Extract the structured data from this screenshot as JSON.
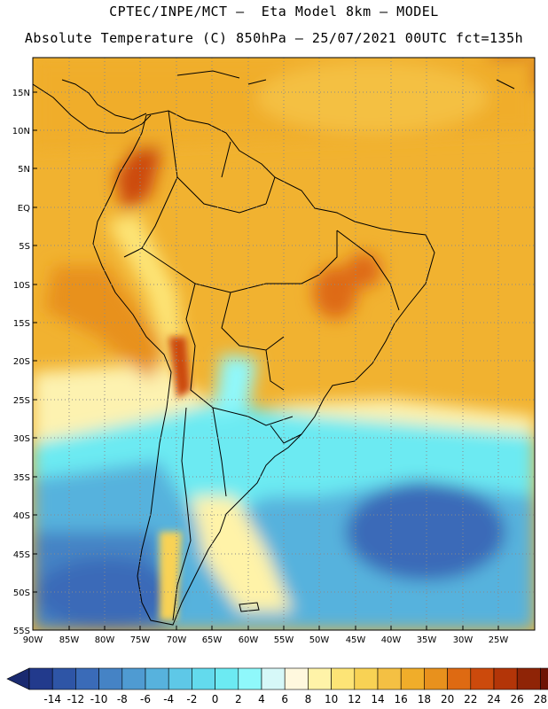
{
  "header": {
    "line1": "CPTEC/INPE/MCT –  Eta Model 8km – MODEL",
    "line2": "Absolute Temperature (C) 850hPa – 25/07/2021 00UTC fct=135h"
  },
  "map": {
    "lon_range": [
      -90,
      -20
    ],
    "lat_range": [
      -55,
      20
    ],
    "lat_labels": [
      "15N",
      "10N",
      "5N",
      "EQ",
      "5S",
      "10S",
      "15S",
      "20S",
      "25S",
      "30S",
      "35S",
      "40S",
      "45S",
      "50S",
      "55S"
    ],
    "lon_labels": [
      "90W",
      "85W",
      "80W",
      "75W",
      "70W",
      "65W",
      "60W",
      "55W",
      "50W",
      "45W",
      "40W",
      "35W",
      "30W",
      "25W"
    ],
    "graticule": "dotted"
  },
  "colorbar": {
    "labels": [
      "-14",
      "-12",
      "-10",
      "-8",
      "-6",
      "-4",
      "-2",
      "0",
      "2",
      "4",
      "6",
      "8",
      "10",
      "12",
      "14",
      "16",
      "18",
      "20",
      "22",
      "24",
      "26",
      "28"
    ],
    "colors": [
      "#223a8c",
      "#2e55a6",
      "#3a6bb8",
      "#4583c5",
      "#4f9bd2",
      "#57b2dd",
      "#5ec8e7",
      "#63daed",
      "#6ceaf2",
      "#8ff8fb",
      "#d6f8f8",
      "#fff8de",
      "#fff3a8",
      "#fde476",
      "#f8d254",
      "#f4c043",
      "#f0ad2a",
      "#e8911d",
      "#de6a12",
      "#cc4a0c",
      "#b33508",
      "#8f2406",
      "#6e1305"
    ],
    "left_arrow_color": "#1a2a70",
    "right_arrow_color": "#5a0012"
  },
  "colors": {
    "land_outline": "#000000",
    "grid": "#888888"
  }
}
